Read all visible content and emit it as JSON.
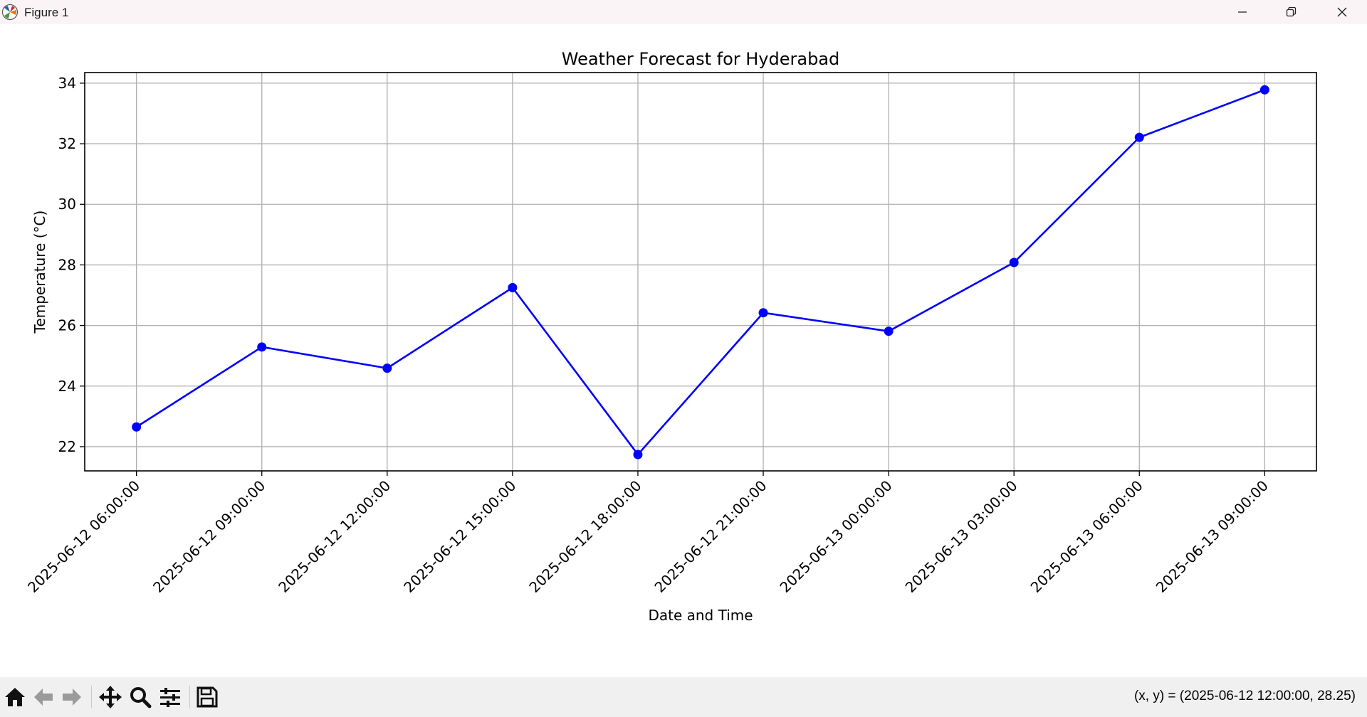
{
  "window": {
    "title": "Figure 1",
    "icon": "matplotlib-icon",
    "controls": [
      "minimize-icon",
      "restore-icon",
      "close-icon"
    ]
  },
  "chart_data": {
    "type": "line",
    "title": "Weather Forecast for Hyderabad",
    "xlabel": "Date and Time",
    "ylabel": "Temperature (°C)",
    "x": [
      "2025-06-12 06:00:00",
      "2025-06-12 09:00:00",
      "2025-06-12 12:00:00",
      "2025-06-12 15:00:00",
      "2025-06-12 18:00:00",
      "2025-06-12 21:00:00",
      "2025-06-13 00:00:00",
      "2025-06-13 03:00:00",
      "2025-06-13 06:00:00",
      "2025-06-13 09:00:00"
    ],
    "series": [
      {
        "values": [
          22.65,
          25.29,
          24.59,
          27.25,
          21.74,
          26.42,
          25.81,
          28.08,
          32.21,
          33.78
        ],
        "color": "#0000ff",
        "marker": "circle"
      }
    ],
    "ylim": [
      21.2,
      34.35
    ],
    "yticks": [
      22,
      24,
      26,
      28,
      30,
      32,
      34
    ],
    "grid": true,
    "x_tick_rotation": 45
  },
  "toolbar": {
    "buttons": [
      {
        "name": "home-button",
        "icon": "home-icon"
      },
      {
        "name": "back-button",
        "icon": "arrow-left-icon"
      },
      {
        "name": "forward-button",
        "icon": "arrow-right-icon"
      },
      {
        "name": "pan-button",
        "icon": "move-icon"
      },
      {
        "name": "zoom-button",
        "icon": "magnifier-icon"
      },
      {
        "name": "configure-subplots-button",
        "icon": "sliders-icon"
      },
      {
        "name": "save-button",
        "icon": "floppy-disk-icon"
      }
    ],
    "coordinates": "(x, y) = (2025-06-12 12:00:00, 28.25)"
  }
}
